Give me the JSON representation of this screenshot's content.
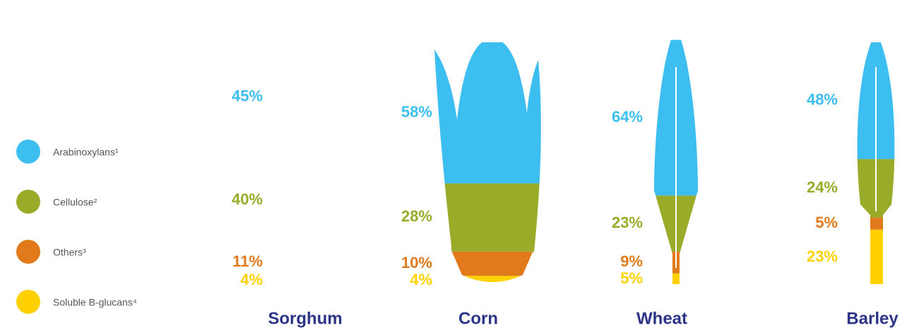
{
  "chart_data": {
    "type": "pictogram_stack",
    "categories": [
      "Sorghum",
      "Corn",
      "Wheat",
      "Barley"
    ],
    "series": [
      {
        "name": "Arabinoxylans¹",
        "color": "#3dbef0",
        "values": [
          45,
          58,
          64,
          48
        ],
        "value_labels": [
          "45%",
          "58%",
          "64%",
          "48%"
        ]
      },
      {
        "name": "Cellulose²",
        "color": "#9aab2a",
        "values": [
          40,
          28,
          23,
          24
        ],
        "value_labels": [
          "40%",
          "28%",
          "23%",
          "24%"
        ]
      },
      {
        "name": "Others³",
        "color": "#e07a1a",
        "values": [
          11,
          10,
          9,
          5
        ],
        "value_labels": [
          "11%",
          "10%",
          "9%",
          "5%"
        ]
      },
      {
        "name": "Soluble B-glucans⁴",
        "color": "#ffd100",
        "values": [
          4,
          4,
          5,
          23
        ],
        "value_labels": [
          "4%",
          "4%",
          "5%",
          "23%"
        ]
      }
    ]
  }
}
